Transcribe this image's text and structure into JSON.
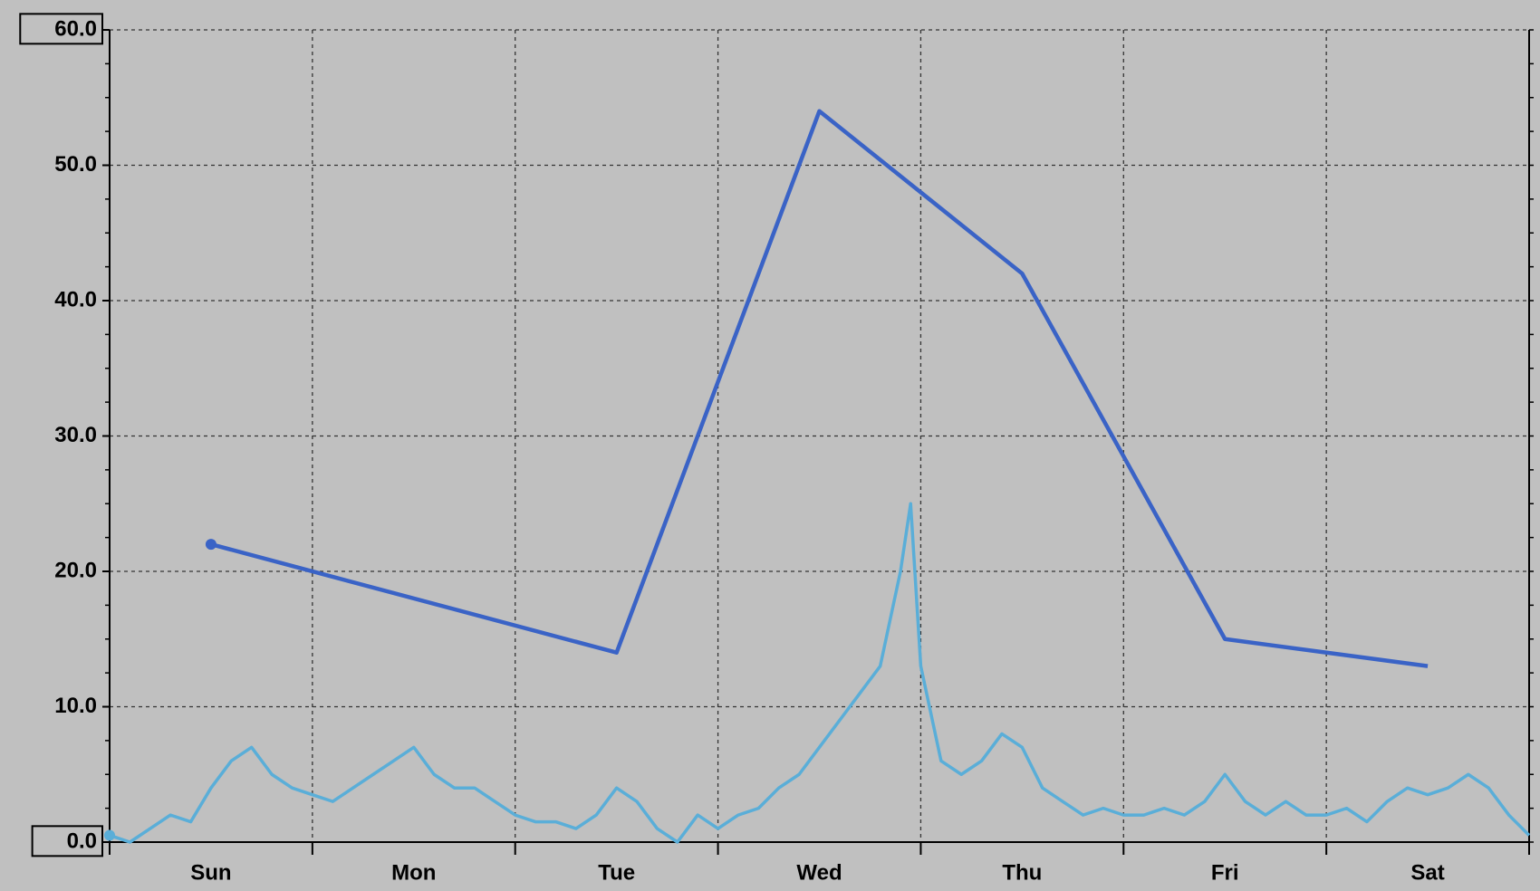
{
  "chart_data": {
    "type": "line",
    "xlim": [
      0,
      7
    ],
    "xticks": [
      {
        "value": 0.5,
        "label": "Sun"
      },
      {
        "value": 1.5,
        "label": "Mon"
      },
      {
        "value": 2.5,
        "label": "Tue"
      },
      {
        "value": 3.5,
        "label": "Wed"
      },
      {
        "value": 4.5,
        "label": "Thu"
      },
      {
        "value": 5.5,
        "label": "Fri"
      },
      {
        "value": 6.5,
        "label": "Sat"
      }
    ],
    "ylim": [
      0,
      60
    ],
    "yticks": [
      {
        "value": 0,
        "label": "0.0"
      },
      {
        "value": 10,
        "label": "10.0"
      },
      {
        "value": 20,
        "label": "20.0"
      },
      {
        "value": 30,
        "label": "30.0"
      },
      {
        "value": 40,
        "label": "40.0"
      },
      {
        "value": 50,
        "label": "50.0"
      },
      {
        "value": 60,
        "label": "60.0"
      }
    ],
    "grid": true,
    "series": [
      {
        "color": "#3a63c6",
        "x": [
          0.5,
          2.5,
          3.5,
          4.5,
          5.5,
          6.5
        ],
        "values": [
          22,
          14,
          54,
          42,
          15,
          13
        ]
      },
      {
        "color": "#5aaed8",
        "x": [
          0,
          0.1,
          0.2,
          0.3,
          0.4,
          0.5,
          0.6,
          0.7,
          0.8,
          0.9,
          1.0,
          1.1,
          1.2,
          1.3,
          1.4,
          1.5,
          1.6,
          1.7,
          1.8,
          1.9,
          2.0,
          2.1,
          2.2,
          2.3,
          2.4,
          2.5,
          2.6,
          2.7,
          2.8,
          2.9,
          3.0,
          3.1,
          3.2,
          3.3,
          3.4,
          3.5,
          3.6,
          3.7,
          3.8,
          3.9,
          3.95,
          4.0,
          4.1,
          4.2,
          4.3,
          4.4,
          4.5,
          4.6,
          4.7,
          4.8,
          4.9,
          5.0,
          5.1,
          5.2,
          5.3,
          5.4,
          5.5,
          5.6,
          5.7,
          5.8,
          5.9,
          6.0,
          6.1,
          6.2,
          6.3,
          6.4,
          6.5,
          6.6,
          6.7,
          6.8,
          6.9,
          7.0
        ],
        "values": [
          0.5,
          0,
          1,
          2,
          1.5,
          4,
          6,
          7,
          5,
          4,
          3.5,
          3,
          4,
          5,
          6,
          7,
          5,
          4,
          4,
          3,
          2,
          1.5,
          1.5,
          1,
          2,
          4,
          3,
          1,
          0,
          2,
          1,
          2,
          2.5,
          4,
          5,
          7,
          9,
          11,
          13,
          20,
          25,
          13,
          6,
          5,
          6,
          8,
          7,
          4,
          3,
          2,
          2.5,
          2,
          2,
          2.5,
          2,
          3,
          5,
          3,
          2,
          3,
          2,
          2,
          2.5,
          1.5,
          3,
          4,
          3.5,
          4,
          5,
          4,
          2,
          0.5
        ]
      }
    ]
  }
}
